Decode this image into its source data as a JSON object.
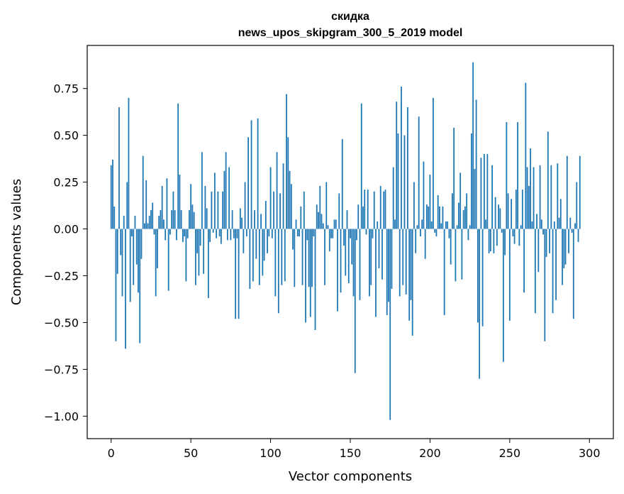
{
  "chart_data": {
    "type": "bar",
    "title": "скидка",
    "subtitle": "news_upos_skipgram_300_5_2019 model",
    "xlabel": "Vector components",
    "ylabel": "Components values",
    "xlim": [
      -15,
      315
    ],
    "ylim": [
      -1.12,
      0.98
    ],
    "xticks": [
      0,
      50,
      100,
      150,
      200,
      250,
      300
    ],
    "xtick_labels": [
      "0",
      "50",
      "100",
      "150",
      "200",
      "250",
      "300"
    ],
    "yticks": [
      -1.0,
      -0.75,
      -0.5,
      -0.25,
      0.0,
      0.25,
      0.5,
      0.75
    ],
    "ytick_labels": [
      "−1.00",
      "−0.75",
      "−0.50",
      "−0.25",
      "0.00",
      "0.25",
      "0.50",
      "0.75"
    ],
    "grid": false,
    "bar_color": "#1f77b4",
    "x_start": 0,
    "values": [
      0.34,
      0.37,
      0.12,
      -0.6,
      -0.24,
      0.65,
      -0.14,
      -0.36,
      0.07,
      -0.64,
      0.25,
      0.7,
      -0.39,
      -0.04,
      -0.3,
      0.07,
      -0.19,
      -0.34,
      -0.61,
      -0.16,
      0.39,
      0.03,
      0.26,
      0.03,
      0.07,
      0.1,
      0.14,
      -0.03,
      -0.36,
      -0.21,
      0.07,
      0.1,
      0.23,
      0.05,
      -0.06,
      0.27,
      -0.33,
      -0.03,
      0.1,
      0.2,
      0.1,
      -0.06,
      0.67,
      0.29,
      0.1,
      -0.07,
      -0.04,
      -0.28,
      -0.05,
      0.1,
      0.24,
      0.13,
      0.09,
      -0.3,
      -0.13,
      -0.25,
      -0.09,
      0.41,
      -0.24,
      0.23,
      0.11,
      -0.37,
      -0.07,
      0.2,
      -0.02,
      0.3,
      -0.05,
      0.2,
      -0.04,
      -0.08,
      0.2,
      0.31,
      0.41,
      -0.06,
      0.33,
      -0.06,
      0.1,
      -0.05,
      -0.48,
      -0.05,
      -0.48,
      0.11,
      0.06,
      -0.13,
      0.25,
      -0.04,
      0.49,
      -0.32,
      0.58,
      -0.28,
      0.1,
      -0.16,
      0.59,
      -0.3,
      0.08,
      -0.25,
      -0.17,
      0.15,
      -0.13,
      -0.04,
      0.33,
      -0.05,
      0.2,
      -0.36,
      0.41,
      -0.45,
      0.19,
      -0.3,
      0.35,
      -0.28,
      0.72,
      0.49,
      0.31,
      0.24,
      -0.11,
      -0.31,
      0.05,
      -0.04,
      -0.04,
      0.12,
      -0.3,
      0.2,
      -0.5,
      -0.06,
      -0.31,
      -0.47,
      -0.31,
      -0.04,
      -0.54,
      0.13,
      0.09,
      0.23,
      0.08,
      0.03,
      -0.3,
      0.25,
      0.02,
      -0.12,
      -0.05,
      -0.05,
      0.05,
      0.05,
      -0.44,
      0.19,
      -0.34,
      0.48,
      -0.09,
      -0.25,
      0.1,
      -0.29,
      -0.05,
      -0.19,
      -0.36,
      -0.77,
      -0.06,
      0.13,
      -0.38,
      0.67,
      0.12,
      0.21,
      -0.03,
      0.21,
      -0.36,
      -0.3,
      -0.05,
      0.2,
      -0.47,
      0.04,
      -0.21,
      0.23,
      -0.27,
      0.2,
      0.21,
      -0.46,
      -0.39,
      -1.02,
      -0.32,
      0.33,
      0.05,
      0.68,
      0.51,
      -0.36,
      0.76,
      -0.3,
      0.5,
      -0.35,
      0.65,
      -0.49,
      -0.38,
      -0.57,
      0.25,
      -0.13,
      0.02,
      0.6,
      -0.04,
      0.05,
      0.36,
      -0.16,
      0.13,
      0.12,
      0.29,
      0.04,
      0.7,
      -0.02,
      -0.04,
      0.18,
      0.12,
      0.03,
      0.12,
      -0.46,
      0.04,
      0.04,
      -0.05,
      -0.19,
      0.19,
      0.54,
      -0.28,
      0.02,
      0.14,
      0.3,
      -0.27,
      0.1,
      0.12,
      0.19,
      -0.06,
      0.02,
      0.51,
      0.89,
      0.32,
      0.69,
      -0.5,
      -0.8,
      0.38,
      -0.52,
      0.4,
      0.05,
      0.4,
      -0.13,
      -0.12,
      0.34,
      -0.13,
      0.17,
      -0.09,
      0.13,
      0.11,
      -0.02,
      -0.71,
      -0.14,
      0.57,
      0.19,
      -0.49,
      0.16,
      -0.04,
      -0.08,
      0.21,
      0.57,
      -0.09,
      0.02,
      0.21,
      -0.34,
      0.78,
      0.33,
      0.23,
      0.43,
      0.04,
      0.33,
      -0.45,
      0.08,
      -0.23,
      0.34,
      0.05,
      -0.03,
      -0.6,
      -0.15,
      0.52,
      -0.13,
      0.34,
      -0.45,
      0.04,
      -0.38,
      0.35,
      0.06,
      0.16,
      -0.3,
      -0.21,
      -0.19,
      0.39,
      -0.13,
      0.06,
      -0.02,
      -0.48,
      0.03,
      0.25,
      -0.07,
      0.39
    ]
  }
}
